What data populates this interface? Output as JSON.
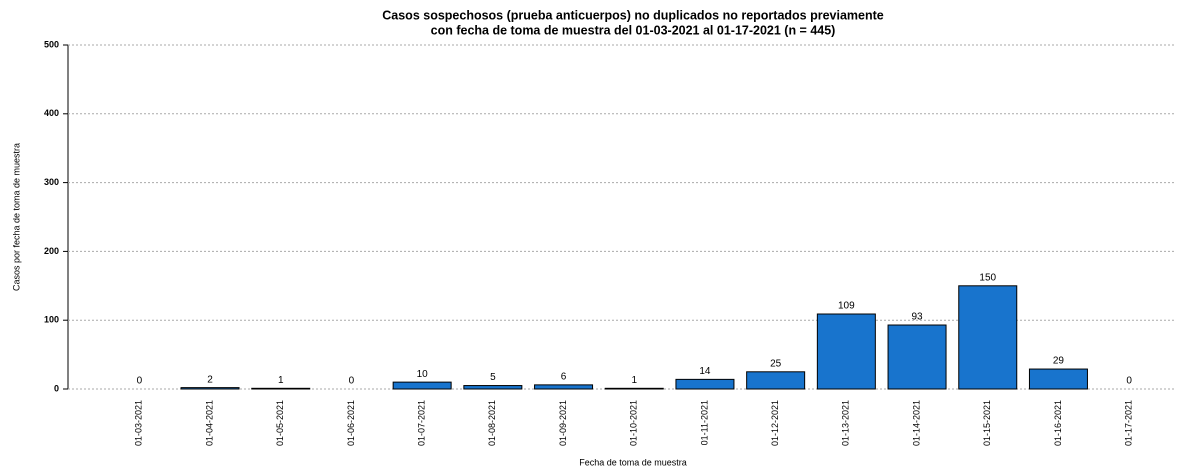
{
  "chart_data": {
    "type": "bar",
    "title": [
      "Casos sospechosos (prueba anticuerpos) no duplicados no reportados previamente",
      "con fecha de toma de muestra del 01-03-2021 al 01-17-2021 (n = 445)"
    ],
    "x_label": "Fecha de toma de muestra",
    "y_label": "Casos por fecha de toma de muestra",
    "categories": [
      "01-03-2021",
      "01-04-2021",
      "01-05-2021",
      "01-06-2021",
      "01-07-2021",
      "01-08-2021",
      "01-09-2021",
      "01-10-2021",
      "01-11-2021",
      "01-12-2021",
      "01-13-2021",
      "01-14-2021",
      "01-15-2021",
      "01-16-2021",
      "01-17-2021"
    ],
    "values": [
      0,
      2,
      1,
      0,
      10,
      5,
      6,
      1,
      14,
      25,
      109,
      93,
      150,
      29,
      0
    ],
    "color": "#1874cd",
    "ylim": [
      0,
      500
    ],
    "yticks": [
      0,
      100,
      200,
      300,
      400,
      500
    ],
    "grid": true
  }
}
